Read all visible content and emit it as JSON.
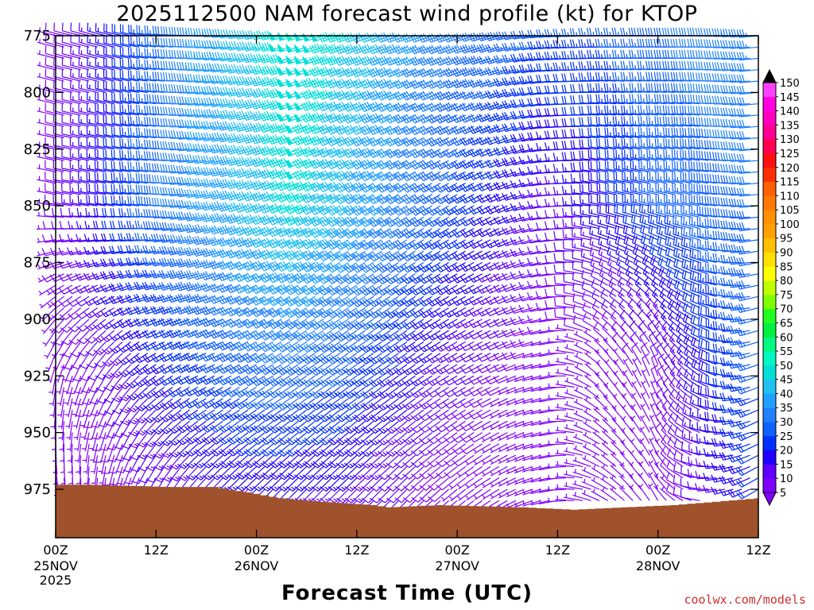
{
  "title": "2025112500 NAM forecast wind profile (kt) for KTOP",
  "x_axis_title": "Forecast Time (UTC)",
  "credit": "coolwx.com/models",
  "chart_data": {
    "type": "wind_barb_time_height",
    "title": "2025112500 NAM forecast wind profile (kt) for KTOP",
    "xlabel": "Forecast Time (UTC)",
    "ylabel": "",
    "x_range_hours": [
      0,
      84
    ],
    "x_step_hours": 1,
    "y_range_hPa": [
      775,
      987
    ],
    "y_reversed": true,
    "y_ticks": [
      775,
      800,
      825,
      850,
      875,
      900,
      925,
      950,
      975
    ],
    "y_step_hPa": 5,
    "x_ticks": [
      {
        "hour": 0,
        "label": "00Z",
        "sub": [
          "25NOV",
          "2025"
        ]
      },
      {
        "hour": 12,
        "label": "12Z",
        "sub": []
      },
      {
        "hour": 24,
        "label": "00Z",
        "sub": [
          "26NOV"
        ]
      },
      {
        "hour": 36,
        "label": "12Z",
        "sub": []
      },
      {
        "hour": 48,
        "label": "00Z",
        "sub": [
          "27NOV"
        ]
      },
      {
        "hour": 60,
        "label": "12Z",
        "sub": []
      },
      {
        "hour": 72,
        "label": "00Z",
        "sub": [
          "28NOV"
        ]
      },
      {
        "hour": 84,
        "label": "12Z",
        "sub": []
      }
    ],
    "surface_pressure_hPa": [
      {
        "hour": 0,
        "p": 973
      },
      {
        "hour": 4,
        "p": 973
      },
      {
        "hour": 14,
        "p": 974
      },
      {
        "hour": 19,
        "p": 974
      },
      {
        "hour": 24,
        "p": 977
      },
      {
        "hour": 27,
        "p": 979
      },
      {
        "hour": 30,
        "p": 980
      },
      {
        "hour": 38,
        "p": 982
      },
      {
        "hour": 40,
        "p": 983
      },
      {
        "hour": 46,
        "p": 982
      },
      {
        "hour": 56,
        "p": 983
      },
      {
        "hour": 62,
        "p": 984
      },
      {
        "hour": 68,
        "p": 983
      },
      {
        "hour": 74,
        "p": 982
      },
      {
        "hour": 84,
        "p": 979
      }
    ],
    "wind_profile": {
      "units": "kt",
      "keyframes_hours": [
        0,
        6,
        12,
        18,
        24,
        30,
        36,
        42,
        48,
        54,
        60,
        66,
        72,
        78,
        84
      ],
      "levels_hPa": [
        775,
        850,
        925,
        975
      ],
      "direction_deg": [
        [
          285,
          285,
          278,
          270,
          260,
          255,
          250,
          250,
          250,
          255,
          265,
          270,
          270,
          270,
          265
        ],
        [
          280,
          278,
          275,
          260,
          250,
          245,
          240,
          240,
          240,
          245,
          265,
          280,
          282,
          280,
          265
        ],
        [
          190,
          210,
          235,
          245,
          240,
          235,
          235,
          235,
          240,
          245,
          260,
          320,
          340,
          300,
          250
        ],
        [
          170,
          185,
          205,
          220,
          225,
          225,
          225,
          225,
          230,
          240,
          260,
          300,
          330,
          270,
          240
        ]
      ],
      "speed_kt": [
        [
          7,
          15,
          25,
          35,
          43,
          50,
          45,
          38,
          32,
          28,
          25,
          25,
          28,
          32,
          33
        ],
        [
          7,
          18,
          28,
          35,
          42,
          47,
          40,
          33,
          25,
          18,
          12,
          18,
          25,
          28,
          30
        ],
        [
          5,
          10,
          17,
          23,
          28,
          28,
          25,
          18,
          12,
          8,
          5,
          5,
          8,
          18,
          26
        ],
        [
          3,
          6,
          10,
          13,
          15,
          15,
          14,
          10,
          7,
          5,
          4,
          4,
          5,
          12,
          20
        ]
      ]
    },
    "colorbar": {
      "min": 5,
      "max": 150,
      "step": 5,
      "labels": [
        5,
        10,
        15,
        20,
        25,
        30,
        35,
        40,
        45,
        50,
        55,
        60,
        65,
        70,
        75,
        80,
        85,
        90,
        95,
        100,
        105,
        110,
        115,
        120,
        125,
        130,
        135,
        140,
        145,
        150
      ],
      "colors": [
        "#8000ff",
        "#6000ff",
        "#2000ff",
        "#0030ff",
        "#1060ff",
        "#2080ff",
        "#20a0ff",
        "#20c0f0",
        "#00e0d8",
        "#00f8c0",
        "#00f880",
        "#00f040",
        "#20ff20",
        "#80ff00",
        "#c0ff00",
        "#ffff00",
        "#ffe000",
        "#ffc000",
        "#ffa000",
        "#ff9000",
        "#ff7800",
        "#ff6000",
        "#ff3000",
        "#ff1010",
        "#ff0050",
        "#ff0090",
        "#ff00c0",
        "#ff00e0",
        "#ff40ff"
      ]
    },
    "ground_color": "#a0522d"
  }
}
